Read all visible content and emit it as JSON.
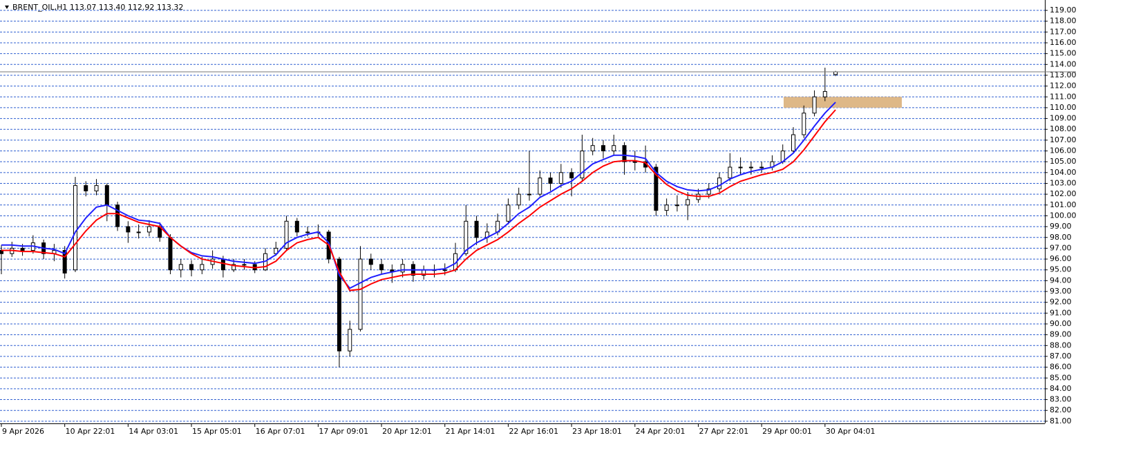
{
  "chart_data": {
    "type": "candlestick",
    "title": "BRENT_OIL,H1  113.07 113.40 112.92 113.32",
    "categories": [
      "9 Apr 2026",
      null,
      null,
      null,
      null,
      null,
      "10 Apr 22:01",
      null,
      null,
      null,
      null,
      null,
      "14 Apr 03:01",
      null,
      null,
      null,
      null,
      null,
      "15 Apr 05:01",
      null,
      null,
      null,
      null,
      null,
      "16 Apr 07:01",
      null,
      null,
      null,
      null,
      null,
      "17 Apr 09:01",
      null,
      null,
      null,
      null,
      null,
      "20 Apr 12:01",
      null,
      null,
      null,
      null,
      null,
      "21 Apr 14:01",
      null,
      null,
      null,
      null,
      null,
      "22 Apr 16:01",
      null,
      null,
      null,
      null,
      null,
      "23 Apr 18:01",
      null,
      null,
      null,
      null,
      null,
      "24 Apr 20:01",
      null,
      null,
      null,
      null,
      null,
      "27 Apr 22:01",
      null,
      null,
      null,
      null,
      null,
      "29 Apr 00:01",
      null,
      null,
      null,
      null,
      null,
      "30 Apr 04:01",
      null
    ],
    "open": [
      96.8,
      96.5,
      97,
      96.8,
      97.5,
      96.5,
      96.8,
      95,
      102.8,
      102.3,
      102.8,
      101,
      99,
      98.5,
      98.5,
      99,
      98,
      95,
      95.5,
      95,
      95.5,
      96,
      95,
      95.5,
      95.5,
      95,
      96.5,
      97,
      99.5,
      98.5,
      98.5,
      98.5,
      96,
      87.5,
      89.5,
      96,
      95.5,
      95,
      94.8,
      95.5,
      94.5,
      95,
      95,
      95,
      96.5,
      99.5,
      98,
      98.5,
      99.5,
      101,
      102,
      102,
      103.5,
      103,
      104,
      103.5,
      106,
      106.5,
      106,
      106.5,
      105,
      105,
      104.5,
      100.5,
      101,
      101,
      101.5,
      102,
      102.5,
      103.5,
      104.5,
      104.5,
      104.5,
      104.5,
      105,
      106,
      107.5,
      109.5,
      111,
      113.07
    ],
    "high": [
      97.3,
      97.6,
      97.4,
      98.2,
      97.8,
      97.4,
      97.2,
      103.6,
      103.2,
      103.4,
      103,
      101.3,
      99.5,
      99.2,
      99.6,
      99.4,
      98.3,
      96,
      95.9,
      96.2,
      96.8,
      96.3,
      96,
      96,
      95.8,
      97,
      97.6,
      100,
      99.8,
      99,
      99.2,
      98.7,
      96.2,
      90.3,
      97.2,
      96.5,
      96,
      95.5,
      96,
      95.8,
      95.4,
      95.5,
      95.6,
      97.5,
      101,
      100,
      99.3,
      100.2,
      101.6,
      102.6,
      106,
      104.2,
      104,
      104.8,
      104.4,
      107.5,
      107.2,
      107,
      107.5,
      106.8,
      106,
      106.5,
      104.8,
      101.6,
      101.9,
      102.2,
      102.5,
      103,
      104,
      105.8,
      105.4,
      105,
      105,
      105.6,
      106.6,
      108.2,
      110.2,
      111.6,
      113.7,
      113.4
    ],
    "low": [
      94.6,
      96.2,
      96.3,
      96.5,
      96,
      95.8,
      94.2,
      94.8,
      101.8,
      101.9,
      99.5,
      98.6,
      97.5,
      97.9,
      98.1,
      97.6,
      94.6,
      94.3,
      94.4,
      94.6,
      95.1,
      94.3,
      94.8,
      95,
      94.7,
      94.9,
      96.3,
      96.8,
      98.1,
      98.1,
      98,
      95.6,
      86,
      87,
      89.3,
      95,
      94.6,
      93.8,
      94.3,
      93.9,
      94.1,
      94.3,
      94.5,
      94.8,
      96.3,
      97.3,
      97.5,
      98.2,
      99.2,
      100.6,
      101.4,
      101.8,
      102.3,
      102.6,
      101.8,
      103.2,
      105.6,
      105.3,
      105.6,
      103.8,
      104.2,
      104,
      100,
      100,
      100.4,
      99.6,
      101.2,
      101.6,
      102.2,
      103.2,
      103.8,
      103.8,
      104,
      104.2,
      104.8,
      105.8,
      107.2,
      109.2,
      110.6,
      112.92
    ],
    "close": [
      96.5,
      97,
      96.8,
      97.5,
      96.5,
      96.8,
      94.7,
      102.8,
      102.3,
      102.8,
      101,
      99,
      98.5,
      98.5,
      99,
      98,
      95,
      95.5,
      95,
      95.5,
      96,
      95,
      95.5,
      95.5,
      95,
      96.5,
      97,
      99.5,
      98.5,
      98.5,
      98.5,
      96,
      87.5,
      89.5,
      96,
      95.5,
      95,
      94.8,
      95.5,
      94.5,
      95,
      95,
      95,
      96.5,
      99.5,
      98,
      98.5,
      99.5,
      101,
      102,
      102,
      103.5,
      103,
      104,
      103.5,
      106,
      106.5,
      106,
      106.5,
      105,
      105,
      104.5,
      100.5,
      101,
      101,
      101.5,
      102,
      102.5,
      103.5,
      104.5,
      104.5,
      104.5,
      104.5,
      105,
      106,
      107.5,
      109.5,
      111,
      111.5,
      113.32
    ],
    "candle_color": "#000000",
    "lines": [
      {
        "color": "#1f1fff",
        "values": [
          97.3,
          97.3,
          97.2,
          97.2,
          97,
          96.9,
          96.5,
          98.5,
          99.8,
          100.8,
          101,
          100.5,
          100,
          99.6,
          99.5,
          99.3,
          98,
          97.2,
          96.6,
          96.3,
          96.2,
          96,
          95.8,
          95.7,
          95.6,
          95.8,
          96.4,
          97.5,
          98,
          98.3,
          98.5,
          97.5,
          94.5,
          93.3,
          93.8,
          94.3,
          94.6,
          94.8,
          95,
          95,
          95,
          95,
          95.1,
          95.6,
          96.8,
          97.5,
          98,
          98.5,
          99.3,
          100.2,
          100.8,
          101.7,
          102.2,
          102.8,
          103.2,
          104,
          104.8,
          105.2,
          105.6,
          105.6,
          105.5,
          105.3,
          104,
          103.2,
          102.7,
          102.4,
          102.3,
          102.4,
          102.8,
          103.4,
          103.8,
          104.1,
          104.3,
          104.5,
          105,
          105.8,
          107,
          108.3,
          109.5,
          110.5
        ]
      },
      {
        "color": "#ff0000",
        "values": [
          96.8,
          96.8,
          96.7,
          96.7,
          96.6,
          96.5,
          96.2,
          97.4,
          98.6,
          99.6,
          100.2,
          100.2,
          99.8,
          99.4,
          99.2,
          99,
          98,
          97.2,
          96.5,
          96,
          95.8,
          95.6,
          95.4,
          95.3,
          95.2,
          95.3,
          95.8,
          96.8,
          97.5,
          97.8,
          98,
          97.3,
          94.8,
          93.1,
          93.2,
          93.7,
          94.1,
          94.3,
          94.5,
          94.6,
          94.6,
          94.6,
          94.7,
          95,
          96,
          96.8,
          97.3,
          97.8,
          98.5,
          99.3,
          100,
          100.8,
          101.4,
          102,
          102.5,
          103.2,
          104,
          104.6,
          105,
          105.1,
          105.1,
          104.9,
          103.8,
          102.9,
          102.3,
          101.9,
          101.8,
          101.8,
          102.1,
          102.7,
          103.2,
          103.5,
          103.8,
          104,
          104.3,
          105,
          106.1,
          107.4,
          108.7,
          109.8
        ]
      }
    ],
    "zone": {
      "low": 110,
      "high": 111,
      "color": "#deb887"
    },
    "ylim": [
      80.8,
      119.96
    ],
    "yticks": [
      {
        "value": 81,
        "label": "81.00"
      },
      {
        "value": 82,
        "label": "82.00"
      },
      {
        "value": 83,
        "label": "83.00"
      },
      {
        "value": 84,
        "label": "84.00"
      },
      {
        "value": 85,
        "label": "85.00"
      },
      {
        "value": 86,
        "label": "86.00"
      },
      {
        "value": 87,
        "label": "87.00"
      },
      {
        "value": 88,
        "label": "88.00"
      },
      {
        "value": 89,
        "label": "89.00"
      },
      {
        "value": 90,
        "label": "90.00"
      },
      {
        "value": 91,
        "label": "91.00"
      },
      {
        "value": 92,
        "label": "92.00"
      },
      {
        "value": 93,
        "label": "93.00"
      },
      {
        "value": 94,
        "label": "94.00"
      },
      {
        "value": 95,
        "label": "95.00"
      },
      {
        "value": 96,
        "label": "96.00"
      },
      {
        "value": 97,
        "label": "97.00"
      },
      {
        "value": 98,
        "label": "98.00"
      },
      {
        "value": 99,
        "label": "99.00"
      },
      {
        "value": 100,
        "label": "100.00"
      },
      {
        "value": 101,
        "label": "101.00"
      },
      {
        "value": 102,
        "label": "102.00"
      },
      {
        "value": 103,
        "label": "103.00"
      },
      {
        "value": 104,
        "label": "104.00"
      },
      {
        "value": 105,
        "label": "105.00"
      },
      {
        "value": 106,
        "label": "106.00"
      },
      {
        "value": 107,
        "label": "107.00"
      },
      {
        "value": 108,
        "label": "108.00"
      },
      {
        "value": 109,
        "label": "109.00"
      },
      {
        "value": 110,
        "label": "110.00"
      },
      {
        "value": 111,
        "label": "111.00"
      },
      {
        "value": 112,
        "label": "112.00"
      },
      {
        "value": 113,
        "label": "113.00"
      },
      {
        "value": 114,
        "label": "114.00"
      },
      {
        "value": 115,
        "label": "115.00"
      },
      {
        "value": 116,
        "label": "116.00"
      },
      {
        "value": 117,
        "label": "117.00"
      },
      {
        "value": 118,
        "label": "118.00"
      },
      {
        "value": 119,
        "label": "119.00"
      }
    ],
    "grid": true,
    "grid_color": "#2f5fd0"
  }
}
